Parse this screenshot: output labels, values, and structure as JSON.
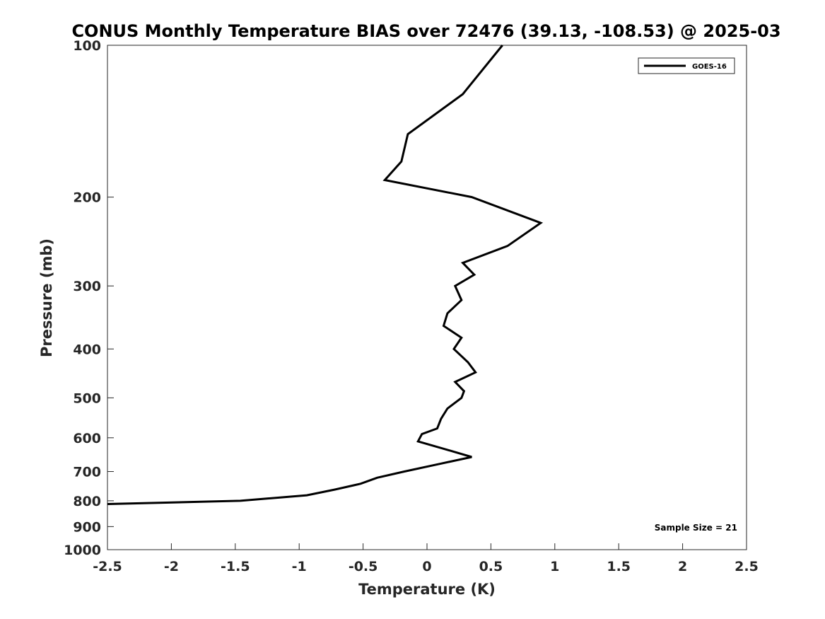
{
  "chart_data": {
    "type": "line",
    "title": "CONUS Monthly Temperature BIAS over 72476 (39.13, -108.53) @ 2025-03",
    "xlabel": "Temperature (K)",
    "ylabel": "Pressure (mb)",
    "xlim": [
      -2.5,
      2.5
    ],
    "ylim": [
      1000,
      100
    ],
    "yscale": "log",
    "y_reversed": true,
    "xticks": [
      -2.5,
      -2,
      -1.5,
      -1,
      -0.5,
      0,
      0.5,
      1,
      1.5,
      2,
      2.5
    ],
    "xtick_labels": [
      "-2.5",
      "-2",
      "-1.5",
      "-1",
      "-0.5",
      "0",
      "0.5",
      "1",
      "1.5",
      "2",
      "2.5"
    ],
    "yticks": [
      100,
      200,
      300,
      400,
      500,
      600,
      700,
      800,
      900,
      1000
    ],
    "ytick_labels": [
      "100",
      "200",
      "300",
      "400",
      "500",
      "600",
      "700",
      "800",
      "900",
      "1000"
    ],
    "grid": false,
    "legend_position": "top-right",
    "annotation": "Sample Size = 21",
    "series": [
      {
        "name": "GOES-16",
        "color": "#000000",
        "points": [
          [
            0.59,
            100
          ],
          [
            0.28,
            125
          ],
          [
            -0.15,
            150
          ],
          [
            -0.2,
            170
          ],
          [
            -0.33,
            185
          ],
          [
            0.35,
            200
          ],
          [
            0.89,
            225
          ],
          [
            0.63,
            250
          ],
          [
            0.28,
            270
          ],
          [
            0.37,
            285
          ],
          [
            0.22,
            300
          ],
          [
            0.27,
            320
          ],
          [
            0.16,
            340
          ],
          [
            0.13,
            360
          ],
          [
            0.27,
            380
          ],
          [
            0.21,
            400
          ],
          [
            0.32,
            425
          ],
          [
            0.38,
            445
          ],
          [
            0.22,
            465
          ],
          [
            0.29,
            485
          ],
          [
            0.27,
            500
          ],
          [
            0.16,
            525
          ],
          [
            0.11,
            550
          ],
          [
            0.08,
            575
          ],
          [
            -0.04,
            590
          ],
          [
            -0.07,
            610
          ],
          [
            0.17,
            635
          ],
          [
            0.35,
            655
          ],
          [
            0.11,
            675
          ],
          [
            -0.18,
            700
          ],
          [
            -0.39,
            720
          ],
          [
            -0.52,
            740
          ],
          [
            -0.72,
            760
          ],
          [
            -0.94,
            780
          ],
          [
            -1.46,
            800
          ],
          [
            -2.5,
            812
          ]
        ]
      }
    ]
  }
}
